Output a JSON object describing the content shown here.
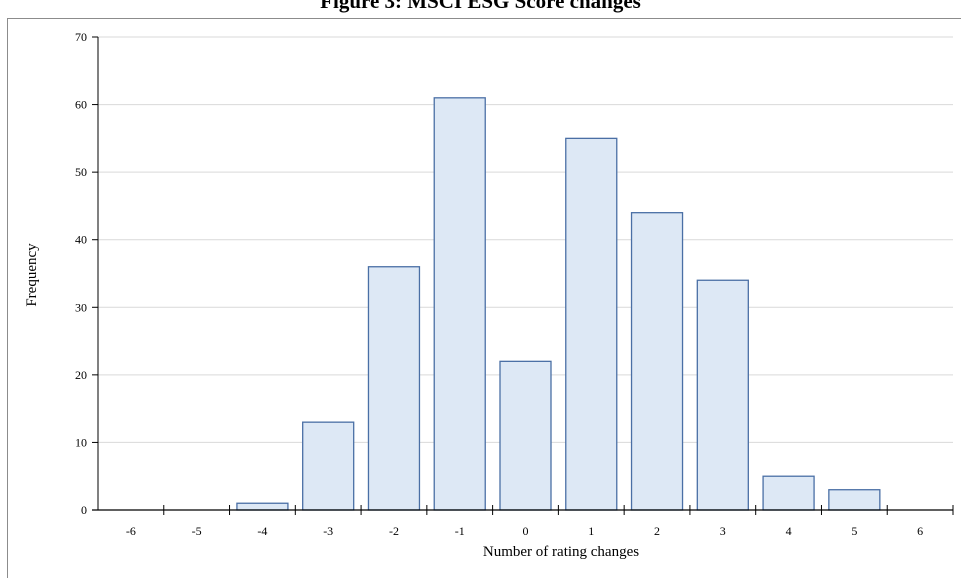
{
  "figure": {
    "title": "Figure 3: MSCI ESG Score changes"
  },
  "chart_data": {
    "type": "bar",
    "title": "Figure 3: MSCI ESG Score changes",
    "xlabel": "Number of rating changes",
    "ylabel": "Frequency",
    "categories": [
      "-6",
      "-5",
      "-4",
      "-3",
      "-2",
      "-1",
      "0",
      "1",
      "2",
      "3",
      "4",
      "5",
      "6"
    ],
    "values": [
      0,
      0,
      1,
      13,
      36,
      61,
      22,
      55,
      44,
      34,
      5,
      3,
      0
    ],
    "ylim": [
      0,
      70
    ],
    "yticks": [
      0,
      10,
      20,
      30,
      40,
      50,
      60,
      70
    ],
    "grid": true,
    "legend": "none",
    "colors": {
      "bar_fill": "#dde8f5",
      "bar_stroke": "#4a6fa5",
      "grid": "#d9d9d9",
      "axis": "#000000"
    }
  }
}
